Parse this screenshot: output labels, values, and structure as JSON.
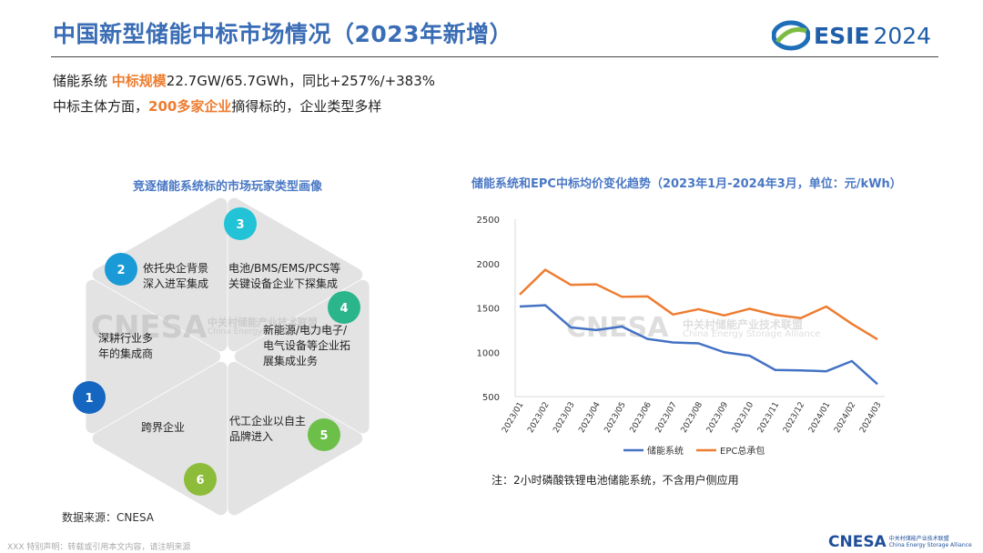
{
  "header": {
    "title": "中国新型储能中标市场情况（2023年新增）",
    "logo_text": "ESIE",
    "logo_year": "2024"
  },
  "summary": {
    "line1_prefix": "储能系统 ",
    "line1_highlight": "中标规模",
    "line1_suffix": "22.7GW/65.7GWh，同比+257%/+383%",
    "line2_prefix": "中标主体方面，",
    "line2_highlight": "200多家企业",
    "line2_suffix": "摘得标的，企业类型多样"
  },
  "hexagon": {
    "title": "竞逐储能系统标的市场玩家类型画像",
    "items": [
      {
        "num": "1",
        "lines": [
          "深耕行业多",
          "年的集成商"
        ],
        "color": "#1566c0"
      },
      {
        "num": "2",
        "lines": [
          "依托央企背景",
          "深入进军集成"
        ],
        "color": "#1a9ad6"
      },
      {
        "num": "3",
        "lines": [
          "电池/BMS/EMS/PCS等",
          "关键设备企业下探集成"
        ],
        "color": "#22c3d6"
      },
      {
        "num": "4",
        "lines": [
          "新能源/电力电子/",
          "电气设备等企业拓",
          "展集成业务"
        ],
        "color": "#2bb58a"
      },
      {
        "num": "5",
        "lines": [
          "代工企业以自主",
          "品牌进入"
        ],
        "color": "#6cc04a"
      },
      {
        "num": "6",
        "lines": [
          "跨界企业"
        ],
        "color": "#8dbb3a"
      }
    ]
  },
  "chart_data": {
    "type": "line",
    "title": "储能系统和EPC中标均价变化趋势（2023年1月-2024年3月，单位：元/kWh）",
    "categories": [
      "2023/01",
      "2023/02",
      "2023/03",
      "2023/04",
      "2023/05",
      "2023/06",
      "2023/07",
      "2023/08",
      "2023/09",
      "2023/10",
      "2023/11",
      "2023/12",
      "2024/01",
      "2024/02",
      "2024/03"
    ],
    "ylim": [
      500,
      2500
    ],
    "yticks": [
      500,
      1000,
      1500,
      2000,
      2500
    ],
    "grid": false,
    "legend": "bottom",
    "series": [
      {
        "name": "储能系统",
        "color": "#4472c4",
        "values": [
          1515,
          1530,
          1280,
          1250,
          1290,
          1150,
          1110,
          1100,
          1000,
          960,
          800,
          795,
          785,
          900,
          640
        ]
      },
      {
        "name": "EPC总承包",
        "color": "#ed7d31",
        "values": [
          1650,
          1930,
          1760,
          1765,
          1625,
          1630,
          1425,
          1485,
          1415,
          1490,
          1420,
          1385,
          1515,
          1320,
          1145
        ]
      }
    ]
  },
  "watermark": {
    "brand": "CNESA",
    "cn": "中关村储能产业技术联盟",
    "en": "China Energy Storage Alliance"
  },
  "footer": {
    "note": "注：2小时磷酸铁锂电池储能系统，不含用户侧应用",
    "source": "数据来源：CNESA",
    "disclaimer": "XXX 特别声明：转载或引用本文内容，请注明来源",
    "logo_text": "CNESA",
    "logo_cn": "中关村储能产业技术联盟",
    "logo_en": "China Energy Storage Alliance"
  }
}
